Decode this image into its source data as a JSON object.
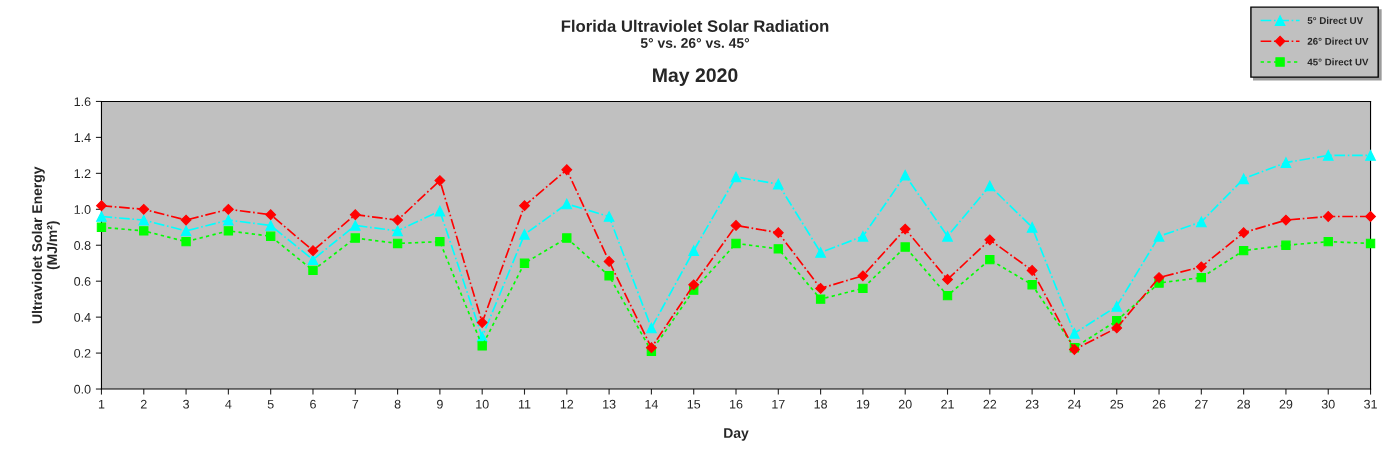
{
  "chart_data": {
    "type": "line",
    "title": "Florida Ultraviolet Solar Radiation",
    "subtitle": "5° vs. 26° vs. 45°",
    "annotations": [
      "May 2020"
    ],
    "xlabel": "Day",
    "ylabel": "Ultraviolet Solar Energy\n(MJ/m²)",
    "x": [
      1,
      2,
      3,
      4,
      5,
      6,
      7,
      8,
      9,
      10,
      11,
      12,
      13,
      14,
      15,
      16,
      17,
      18,
      19,
      20,
      21,
      22,
      23,
      24,
      25,
      26,
      27,
      28,
      29,
      30,
      31
    ],
    "xlim": [
      1,
      31
    ],
    "xticks": [
      1,
      2,
      3,
      4,
      5,
      6,
      7,
      8,
      9,
      10,
      11,
      12,
      13,
      14,
      15,
      16,
      17,
      18,
      19,
      20,
      21,
      22,
      23,
      24,
      25,
      26,
      27,
      28,
      29,
      30,
      31
    ],
    "ylim": [
      0,
      1.6
    ],
    "yticks": [
      {
        "value": 0,
        "label": "0.0"
      },
      {
        "value": 0.2,
        "label": "0.2"
      },
      {
        "value": 0.4,
        "label": "0.4"
      },
      {
        "value": 0.6,
        "label": "0.6"
      },
      {
        "value": 0.8,
        "label": "0.8"
      },
      {
        "value": 1.0,
        "label": "1.0"
      },
      {
        "value": 1.2,
        "label": "1.2"
      },
      {
        "value": 1.4,
        "label": "1.4"
      },
      {
        "value": 1.6,
        "label": "1.6"
      }
    ],
    "grid": false,
    "legend": "top right",
    "series": [
      {
        "name": "5° Direct UV",
        "color": "#00ffff",
        "marker": "triangle",
        "line_style": "dashed",
        "values": [
          0.96,
          0.94,
          0.88,
          0.94,
          0.91,
          0.72,
          0.91,
          0.88,
          0.99,
          0.29,
          0.86,
          1.03,
          0.96,
          0.34,
          0.77,
          1.18,
          1.14,
          0.76,
          0.85,
          1.19,
          0.85,
          1.13,
          0.9,
          0.31,
          0.46,
          0.85,
          0.93,
          1.17,
          1.26,
          1.3,
          1.3
        ]
      },
      {
        "name": "26° Direct UV",
        "color": "#ff0000",
        "marker": "diamond",
        "line_style": "dashed",
        "values": [
          1.02,
          1.0,
          0.94,
          1.0,
          0.97,
          0.77,
          0.97,
          0.94,
          1.16,
          0.37,
          1.02,
          1.22,
          0.71,
          0.23,
          0.58,
          0.91,
          0.87,
          0.56,
          0.63,
          0.89,
          0.61,
          0.83,
          0.66,
          0.22,
          0.34,
          0.62,
          0.68,
          0.87,
          0.94,
          0.96,
          0.96
        ]
      },
      {
        "name": "45° Direct UV",
        "color": "#00ff00",
        "marker": "square",
        "line_style": "dotted",
        "values": [
          0.9,
          0.88,
          0.82,
          0.88,
          0.85,
          0.66,
          0.84,
          0.81,
          0.82,
          0.24,
          0.7,
          0.84,
          0.63,
          0.21,
          0.55,
          0.81,
          0.78,
          0.5,
          0.56,
          0.79,
          0.52,
          0.72,
          0.58,
          0.23,
          0.38,
          0.59,
          0.62,
          0.77,
          0.8,
          0.82,
          0.81
        ]
      }
    ]
  }
}
